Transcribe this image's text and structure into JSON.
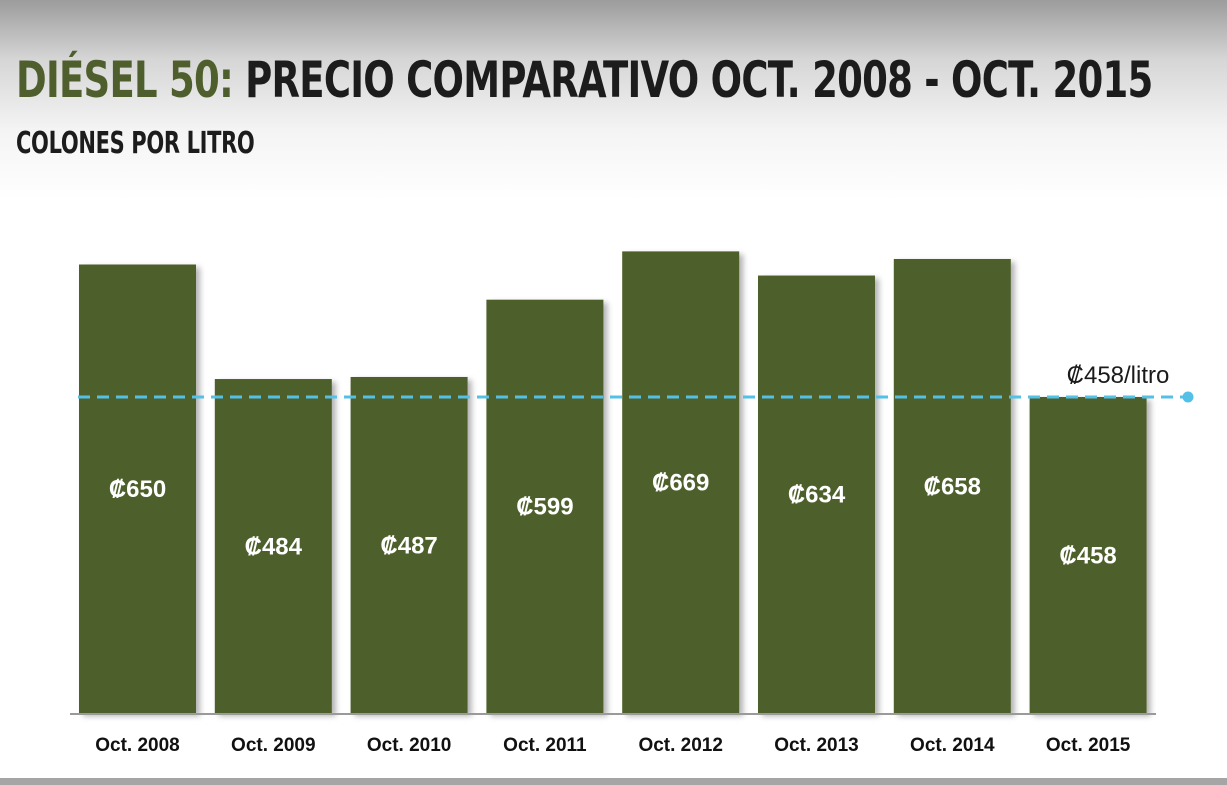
{
  "header": {
    "title_accent": "DIÉSEL 50:",
    "title_main": " PRECIO COMPARATIVO  OCT. 2008 - OCT. 2015",
    "subtitle": "COLONES POR LITRO"
  },
  "colors": {
    "bar": "#4e5e2c",
    "reference_line": "#55c0e6",
    "label_text": "#ffffff",
    "axis_text": "#111111"
  },
  "chart_data": {
    "type": "bar",
    "title": "DIÉSEL 50: PRECIO COMPARATIVO  OCT. 2008 - OCT. 2015",
    "subtitle": "COLONES POR LITRO",
    "xlabel": "",
    "ylabel": "",
    "categories": [
      "Oct. 2008",
      "Oct. 2009",
      "Oct. 2010",
      "Oct. 2011",
      "Oct. 2012",
      "Oct. 2013",
      "Oct. 2014",
      "Oct. 2015"
    ],
    "values": [
      650,
      484,
      487,
      599,
      669,
      634,
      658,
      458
    ],
    "value_labels": [
      "₡650",
      "₡484",
      "₡487",
      "₡599",
      "₡669",
      "₡634",
      "₡658",
      "₡458"
    ],
    "ylim": [
      0,
      700
    ],
    "grid": false,
    "reference_line": {
      "value": 458,
      "label": "₡458/litro"
    }
  }
}
